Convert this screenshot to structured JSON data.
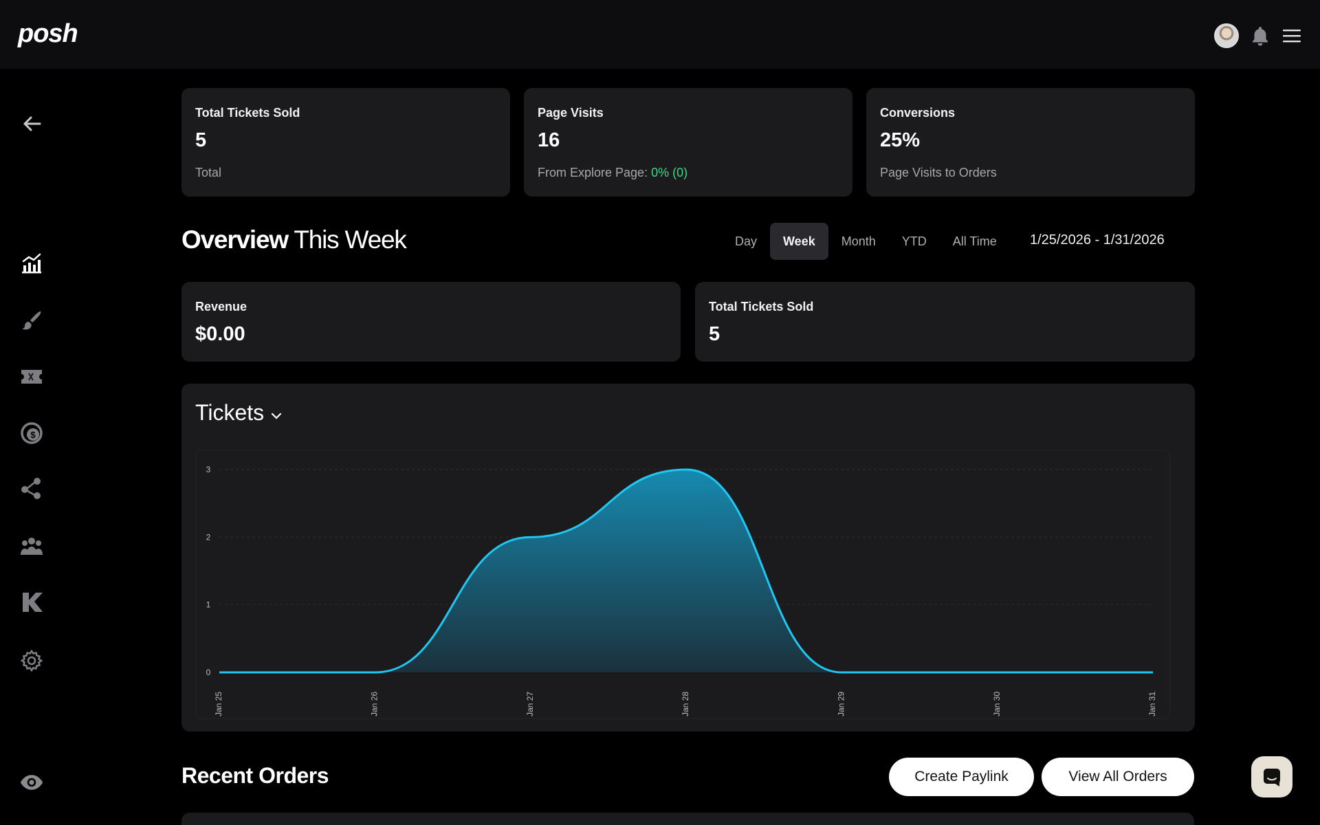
{
  "header": {
    "logo": "posh",
    "icons": [
      "avatar",
      "bell-icon",
      "menu-icon"
    ]
  },
  "sidebar": {
    "items": [
      {
        "name": "back",
        "icon": "arrow-left-icon"
      },
      {
        "name": "analytics",
        "icon": "chart-bars-icon"
      },
      {
        "name": "design",
        "icon": "brush-icon"
      },
      {
        "name": "tickets",
        "icon": "ticket-icon"
      },
      {
        "name": "finance",
        "icon": "dollar-coin-icon"
      },
      {
        "name": "referrals",
        "icon": "share-people-icon"
      },
      {
        "name": "team",
        "icon": "group-icon"
      },
      {
        "name": "kickback",
        "icon": "k-logo-icon"
      },
      {
        "name": "settings",
        "icon": "gear-icon"
      },
      {
        "name": "preview",
        "icon": "eye-icon"
      }
    ]
  },
  "stats": [
    {
      "label": "Total Tickets Sold",
      "value": "5",
      "sub": "Total"
    },
    {
      "label": "Page Visits",
      "value": "16",
      "sub_prefix": "From Explore Page: ",
      "sub_highlight": "0% (0)"
    },
    {
      "label": "Conversions",
      "value": "25%",
      "sub": "Page Visits to Orders"
    }
  ],
  "overview": {
    "title_bold": "Overview",
    "title_light": "This Week",
    "tabs": [
      "Day",
      "Week",
      "Month",
      "YTD",
      "All Time"
    ],
    "active_tab": "Week",
    "date_range": "1/25/2026 - 1/31/2026"
  },
  "summary": [
    {
      "label": "Revenue",
      "value": "$0.00"
    },
    {
      "label": "Total Tickets Sold",
      "value": "5"
    }
  ],
  "chart_card": {
    "title": "Tickets"
  },
  "chart_data": {
    "type": "area",
    "x": [
      "Jan 25",
      "Jan 26",
      "Jan 27",
      "Jan 28",
      "Jan 29",
      "Jan 30",
      "Jan 31"
    ],
    "values": [
      0,
      0,
      2,
      3,
      0,
      0,
      0
    ],
    "ylim": [
      0,
      3
    ],
    "yticks": [
      "0",
      "1",
      "2",
      "3"
    ],
    "grid": true,
    "line_color": "#1ec8f2"
  },
  "recent_orders": {
    "title": "Recent Orders",
    "create_label": "Create Paylink",
    "view_label": "View All Orders"
  }
}
